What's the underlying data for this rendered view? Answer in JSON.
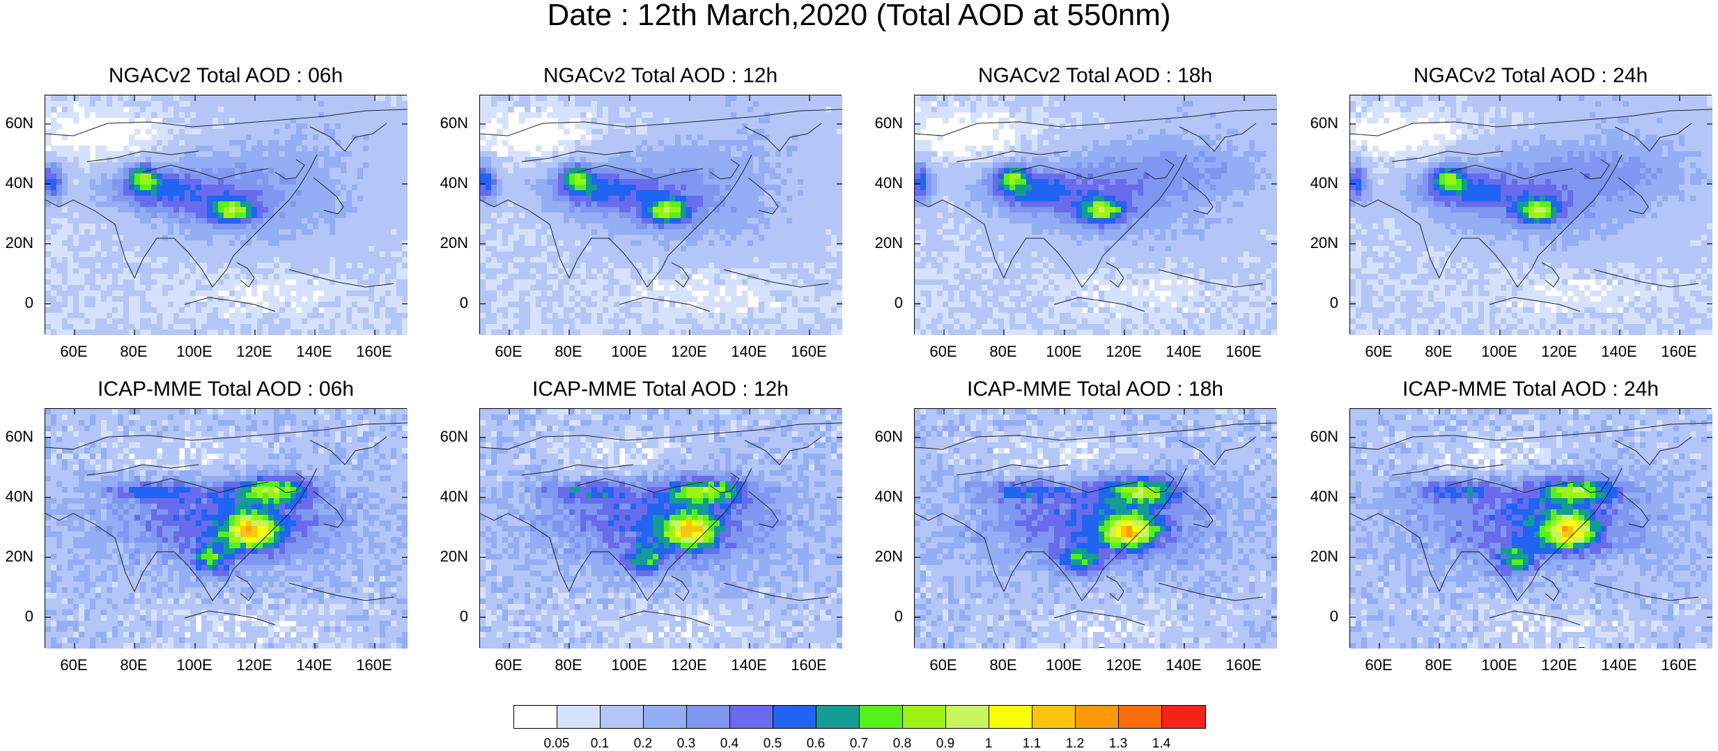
{
  "page_title": "Date : 12th March,2020 (Total AOD at 550nm)",
  "axis_labels": {
    "lon": [
      "60E",
      "80E",
      "100E",
      "120E",
      "140E",
      "160E"
    ],
    "lat": [
      "60N",
      "40N",
      "20N",
      "0"
    ]
  },
  "panels": [
    {
      "title": "NGACv2 Total AOD : 06h",
      "model": "ngac",
      "hour": 6
    },
    {
      "title": "NGACv2 Total AOD : 12h",
      "model": "ngac",
      "hour": 12
    },
    {
      "title": "NGACv2 Total AOD : 18h",
      "model": "ngac",
      "hour": 18
    },
    {
      "title": "NGACv2 Total AOD : 24h",
      "model": "ngac",
      "hour": 24
    },
    {
      "title": "ICAP-MME Total AOD : 06h",
      "model": "icap",
      "hour": 6
    },
    {
      "title": "ICAP-MME Total AOD : 12h",
      "model": "icap",
      "hour": 12
    },
    {
      "title": "ICAP-MME Total AOD : 18h",
      "model": "icap",
      "hour": 18
    },
    {
      "title": "ICAP-MME Total AOD : 24h",
      "model": "icap",
      "hour": 24
    }
  ],
  "colorbar": {
    "labels": [
      "0.05",
      "0.1",
      "0.2",
      "0.3",
      "0.4",
      "0.5",
      "0.6",
      "0.7",
      "0.8",
      "0.9",
      "1",
      "1.1",
      "1.2",
      "1.3",
      "1.4"
    ],
    "colors": [
      "#ffffff",
      "#d6e1fb",
      "#b4c6f7",
      "#93aef4",
      "#7f97f1",
      "#6a6bec",
      "#1f64f2",
      "#139c93",
      "#55f21a",
      "#9ef215",
      "#c7f55e",
      "#fbfc07",
      "#fcc40a",
      "#fc9a0c",
      "#fb6f0a",
      "#f5231a"
    ]
  }
}
